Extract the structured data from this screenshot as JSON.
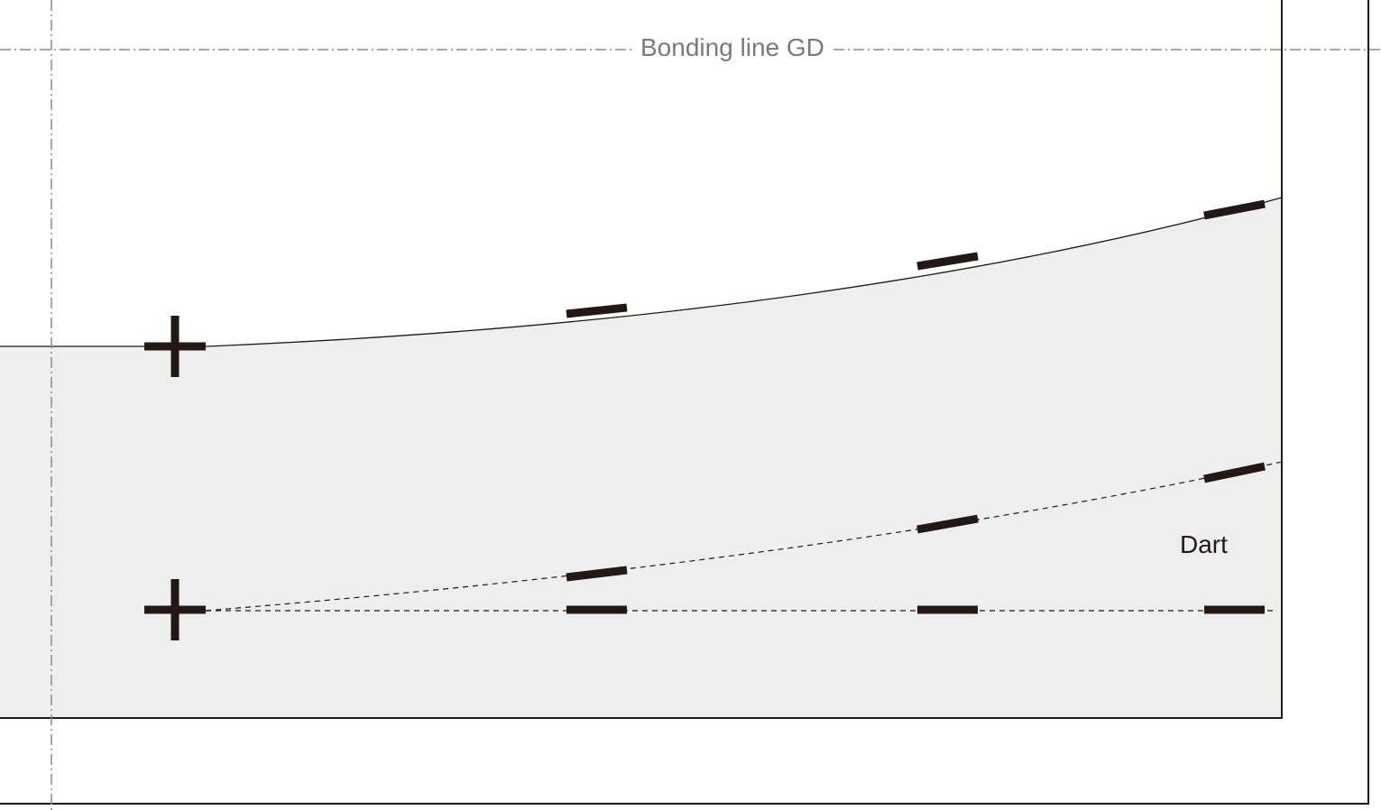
{
  "labels": {
    "bonding_line": "Bonding line GD",
    "dart": "Dart"
  },
  "colors": {
    "fill": "#eeeeee",
    "stroke": "#231815",
    "guide": "#8c8c8c",
    "label_gray": "#7a7a7a"
  }
}
